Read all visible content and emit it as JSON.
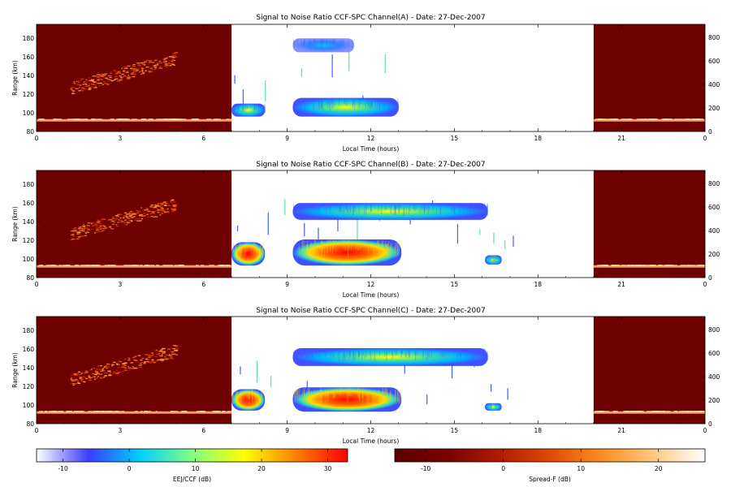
{
  "chart_data": [
    {
      "type": "heatmap",
      "title": "Signal to Noise Ratio CCF-SPC Channel(A) - Date: 27-Dec-2007",
      "xlabel": "Local Time (hours)",
      "ylabel": "Range (km)",
      "xlim": [
        0,
        24
      ],
      "ylim": [
        80,
        195
      ],
      "x_ticks": [
        "0",
        "3",
        "6",
        "9",
        "12",
        "15",
        "18",
        "21",
        "0"
      ],
      "y_ticks": [
        "80",
        "100",
        "120",
        "140",
        "160",
        "180"
      ],
      "y2_ticks": [
        "0",
        "200",
        "400",
        "600",
        "800"
      ],
      "y2lim": [
        0,
        910
      ],
      "spreadf_panels": [
        {
          "x0": 0,
          "x1": 7.0
        },
        {
          "x0": 20.0,
          "x1": 24
        }
      ],
      "eej_blobs": [
        {
          "x0": 7.0,
          "x1": 8.2,
          "y0": 96,
          "y1": 110,
          "peak_db": 6
        },
        {
          "x0": 9.2,
          "x1": 13.0,
          "y0": 96,
          "y1": 116,
          "peak_db": 14
        },
        {
          "x0": 9.2,
          "x1": 11.4,
          "y0": 165,
          "y1": 180,
          "peak_db": -4
        }
      ],
      "sporadic_columns": [
        7.1,
        7.4,
        8.2,
        9.5,
        10.6,
        11.2,
        11.7,
        12.5
      ]
    },
    {
      "type": "heatmap",
      "title": "Signal to Noise Ratio CCF-SPC Channel(B) - Date: 27-Dec-2007",
      "xlabel": "Local Time (hours)",
      "ylabel": "Range (km)",
      "xlim": [
        0,
        24
      ],
      "ylim": [
        80,
        195
      ],
      "x_ticks": [
        "0",
        "3",
        "6",
        "9",
        "12",
        "15",
        "18",
        "21",
        "0"
      ],
      "y_ticks": [
        "80",
        "100",
        "120",
        "140",
        "160",
        "180"
      ],
      "y2_ticks": [
        "0",
        "200",
        "400",
        "600",
        "800"
      ],
      "y2lim": [
        0,
        910
      ],
      "spreadf_panels": [
        {
          "x0": 0,
          "x1": 7.0
        },
        {
          "x0": 20.0,
          "x1": 24
        }
      ],
      "eej_blobs": [
        {
          "x0": 7.0,
          "x1": 8.2,
          "y0": 93,
          "y1": 118,
          "peak_db": 28
        },
        {
          "x0": 9.2,
          "x1": 13.1,
          "y0": 93,
          "y1": 121,
          "peak_db": 30
        },
        {
          "x0": 16.1,
          "x1": 16.7,
          "y0": 94,
          "y1": 104,
          "peak_db": 14
        },
        {
          "x0": 9.2,
          "x1": 16.2,
          "y0": 142,
          "y1": 160,
          "peak_db": 4
        }
      ],
      "sporadic_columns": [
        7.2,
        7.8,
        8.3,
        8.9,
        9.6,
        10.1,
        10.8,
        11.5,
        12.3,
        13.4,
        14.2,
        15.1,
        15.9,
        16.4,
        16.8,
        17.1
      ]
    },
    {
      "type": "heatmap",
      "title": "Signal to Noise Ratio CCF-SPC Channel(C) - Date: 27-Dec-2007",
      "xlabel": "Local Time (hours)",
      "ylabel": "Range (km)",
      "xlim": [
        0,
        24
      ],
      "ylim": [
        80,
        195
      ],
      "x_ticks": [
        "0",
        "3",
        "6",
        "9",
        "12",
        "15",
        "18",
        "21",
        "0"
      ],
      "y_ticks": [
        "80",
        "100",
        "120",
        "140",
        "160",
        "180"
      ],
      "y2_ticks": [
        "0",
        "200",
        "400",
        "600",
        "800"
      ],
      "y2lim": [
        0,
        910
      ],
      "spreadf_panels": [
        {
          "x0": 0,
          "x1": 7.0
        },
        {
          "x0": 20.0,
          "x1": 24
        }
      ],
      "eej_blobs": [
        {
          "x0": 7.0,
          "x1": 8.2,
          "y0": 94,
          "y1": 117,
          "peak_db": 26
        },
        {
          "x0": 9.2,
          "x1": 13.1,
          "y0": 93,
          "y1": 119,
          "peak_db": 28
        },
        {
          "x0": 16.1,
          "x1": 16.7,
          "y0": 94,
          "y1": 102,
          "peak_db": 12
        },
        {
          "x0": 9.2,
          "x1": 16.2,
          "y0": 142,
          "y1": 161,
          "peak_db": 4
        }
      ],
      "sporadic_columns": [
        7.3,
        7.9,
        8.4,
        9.7,
        10.4,
        11.3,
        12.4,
        13.2,
        14.0,
        14.9,
        15.7,
        16.3,
        16.9
      ]
    }
  ],
  "colorbars": [
    {
      "label": "EEJ/CCF (dB)",
      "range_db": [
        -14,
        33
      ],
      "tick_values": [
        -10,
        0,
        10,
        20,
        30
      ],
      "tick_labels": [
        "-10",
        "0",
        "10",
        "20",
        "30"
      ],
      "colors": [
        "#ffffff",
        "#3c3cff",
        "#00d0ff",
        "#80ff80",
        "#ffff00",
        "#ff8000",
        "#ff0000"
      ]
    },
    {
      "label": "Spread-F (dB)",
      "range_db": [
        -14,
        26
      ],
      "tick_values": [
        -10,
        0,
        10,
        20
      ],
      "tick_labels": [
        "-10",
        "0",
        "10",
        "20"
      ],
      "colors": [
        "#5a0000",
        "#7a0000",
        "#b01a00",
        "#e04a00",
        "#ff8c20",
        "#ffc880",
        "#ffffff"
      ]
    }
  ]
}
